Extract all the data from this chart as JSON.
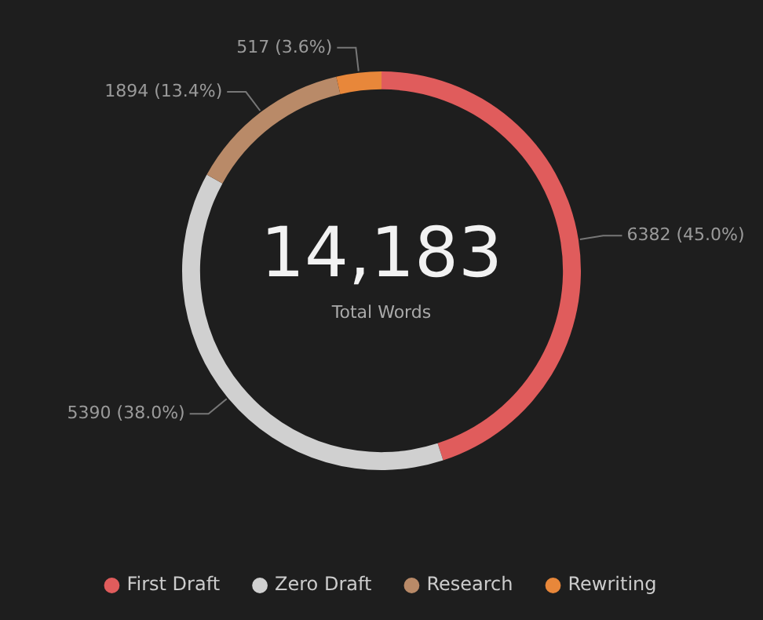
{
  "chart_data": {
    "type": "donut",
    "categories": [
      "First Draft",
      "Zero Draft",
      "Research",
      "Rewriting"
    ],
    "values": [
      6382,
      5390,
      1894,
      517
    ],
    "colors": [
      "#e05c5c",
      "#d0d0d0",
      "#b98a68",
      "#e8873a"
    ],
    "value_labels": [
      "6382 (45.0%)",
      "5390 (38.0%)",
      "1894 (13.4%)",
      "517 (3.6%)"
    ],
    "annotations": [
      "14,183",
      "Total Words"
    ],
    "legend": "bottom"
  }
}
